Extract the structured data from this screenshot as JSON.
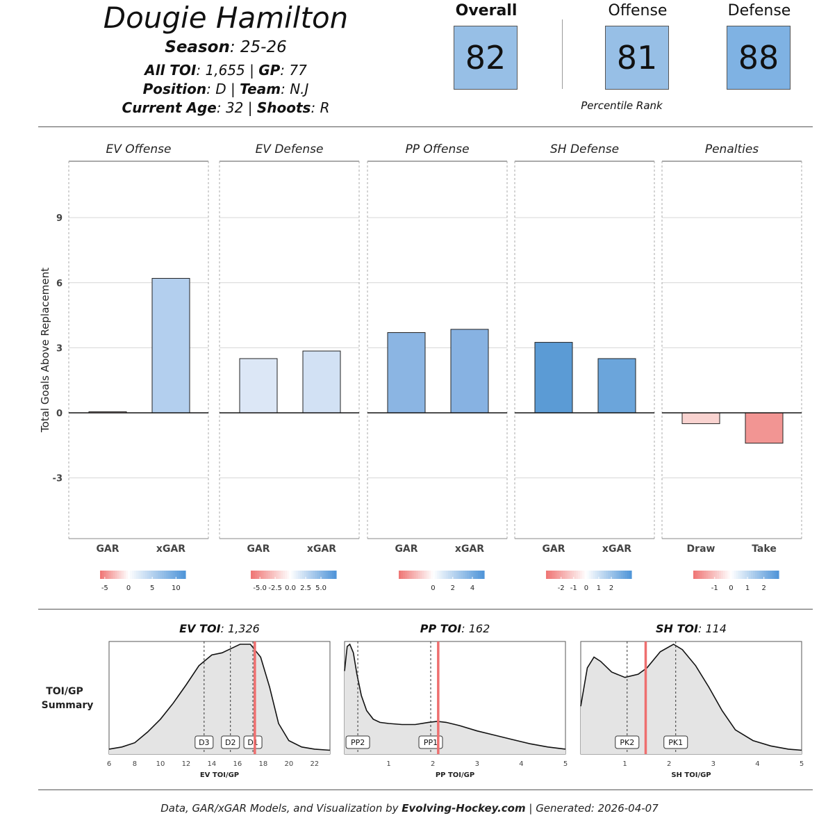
{
  "header": {
    "player_name": "Dougie Hamilton",
    "season_label": "Season",
    "season": "25-26",
    "toi_label": "All TOI",
    "toi": "1,655",
    "gp_label": "GP",
    "gp": "77",
    "position_label": "Position",
    "position": "D",
    "team_label": "Team",
    "team": "N.J",
    "age_label": "Current Age",
    "age": "32",
    "shoots_label": "Shoots",
    "shoots": "R"
  },
  "ratings": {
    "overall_label": "Overall",
    "overall": "82",
    "offense_label": "Offense",
    "offense": "81",
    "defense_label": "Defense",
    "defense": "88",
    "percentile_label": "Percentile Rank",
    "colors": {
      "overall": "#97bfe6",
      "offense": "#97bfe6",
      "defense": "#7fb2e3"
    }
  },
  "footer": {
    "prefix": "Data, GAR/xGAR Models, and Visualization by ",
    "source": "Evolving-Hockey.com",
    "separator": " | ",
    "generated_label": "Generated",
    "generated": "2026-04-07"
  },
  "chart_data": [
    {
      "type": "bar",
      "title": "",
      "ylabel": "Total Goals Above Replacement",
      "ylim": [
        -5.8,
        11.6
      ],
      "yticks": [
        -3,
        0,
        3,
        6,
        9
      ],
      "panels": [
        {
          "title": "EV Offense",
          "categories": [
            "GAR",
            "xGAR"
          ],
          "values": [
            0.05,
            6.2
          ],
          "colors": [
            "#f3d8d6",
            "#b3cfee"
          ],
          "legend": {
            "ticks": [
              "-5",
              "0",
              "5",
              "10"
            ],
            "min": -6,
            "max": 12
          }
        },
        {
          "title": "EV Defense",
          "categories": [
            "GAR",
            "xGAR"
          ],
          "values": [
            2.5,
            2.85
          ],
          "colors": [
            "#dce7f6",
            "#d2e1f4"
          ],
          "legend": {
            "ticks": [
              "-5.0",
              "-2.5",
              "0.0",
              "2.5",
              "5.0"
            ],
            "min": -6.5,
            "max": 7.5
          }
        },
        {
          "title": "PP Offense",
          "categories": [
            "GAR",
            "xGAR"
          ],
          "values": [
            3.7,
            3.85
          ],
          "colors": [
            "#8bb5e3",
            "#87b2e2"
          ],
          "legend": {
            "ticks": [
              "0",
              "2",
              "4"
            ],
            "min": -3.5,
            "max": 5.2
          }
        },
        {
          "title": "SH Defense",
          "categories": [
            "GAR",
            "xGAR"
          ],
          "values": [
            3.25,
            2.5
          ],
          "colors": [
            "#5b9bd5",
            "#6ba5db"
          ],
          "legend": {
            "ticks": [
              "-2",
              "-1",
              "0",
              "1",
              "2"
            ],
            "min": -3.2,
            "max": 3.6
          }
        },
        {
          "title": "Penalties",
          "categories": [
            "Draw",
            "Take"
          ],
          "values": [
            -0.5,
            -1.4
          ],
          "colors": [
            "#f9d3d0",
            "#f29593"
          ],
          "legend": {
            "ticks": [
              "-1",
              "0",
              "1",
              "2"
            ],
            "min": -2.3,
            "max": 2.9
          }
        }
      ]
    },
    {
      "type": "area",
      "title": "TOI/GP Summary",
      "row_label_line1": "TOI/GP",
      "row_label_line2": "Summary",
      "panels": [
        {
          "title_label": "EV TOI",
          "title_value": "1,326",
          "xlabel": "EV TOI/GP",
          "xlim": [
            6,
            23.2
          ],
          "xticks": [
            6,
            8,
            10,
            12,
            14,
            16,
            18,
            20,
            22
          ],
          "density_x": [
            6,
            7,
            8,
            9,
            10,
            11,
            12,
            13,
            14,
            14.8,
            15.5,
            16.2,
            17,
            17.8,
            18.5,
            19.2,
            20,
            21,
            22,
            23.2
          ],
          "density_y": [
            0.02,
            0.04,
            0.08,
            0.18,
            0.3,
            0.45,
            0.62,
            0.8,
            0.9,
            0.92,
            0.96,
            1.0,
            1.0,
            0.88,
            0.6,
            0.26,
            0.1,
            0.04,
            0.02,
            0.01
          ],
          "markers": [
            {
              "label": "D3",
              "x": 13.4
            },
            {
              "label": "D2",
              "x": 15.45
            },
            {
              "label": "D1",
              "x": 17.2
            }
          ],
          "player_value": 17.35
        },
        {
          "title_label": "PP TOI",
          "title_value": "162",
          "xlabel": "PP TOI/GP",
          "xlim": [
            0,
            5
          ],
          "xticks": [
            1,
            2,
            3,
            4,
            5
          ],
          "density_x": [
            0,
            0.06,
            0.12,
            0.2,
            0.28,
            0.38,
            0.5,
            0.65,
            0.8,
            1.0,
            1.3,
            1.6,
            1.9,
            2.1,
            2.3,
            2.6,
            3.0,
            3.4,
            3.8,
            4.2,
            4.6,
            5.0
          ],
          "density_y": [
            0.75,
            0.98,
            1.0,
            0.92,
            0.72,
            0.52,
            0.38,
            0.3,
            0.27,
            0.26,
            0.25,
            0.25,
            0.27,
            0.28,
            0.27,
            0.24,
            0.19,
            0.15,
            0.11,
            0.07,
            0.04,
            0.02
          ],
          "markers": [
            {
              "label": "PP2",
              "x": 0.3
            },
            {
              "label": "PP1",
              "x": 1.95
            }
          ],
          "player_value": 2.12
        },
        {
          "title_label": "SH TOI",
          "title_value": "114",
          "xlabel": "SH TOI/GP",
          "xlim": [
            0,
            5
          ],
          "xticks": [
            1,
            2,
            3,
            4,
            5
          ],
          "density_x": [
            0,
            0.15,
            0.3,
            0.45,
            0.7,
            1.0,
            1.3,
            1.5,
            1.8,
            2.1,
            2.3,
            2.6,
            2.9,
            3.2,
            3.5,
            3.9,
            4.3,
            4.7,
            5.0
          ],
          "density_y": [
            0.42,
            0.78,
            0.88,
            0.84,
            0.74,
            0.69,
            0.72,
            0.78,
            0.93,
            1.0,
            0.95,
            0.8,
            0.6,
            0.38,
            0.2,
            0.1,
            0.05,
            0.02,
            0.01
          ],
          "markers": [
            {
              "label": "PK2",
              "x": 1.05
            },
            {
              "label": "PK1",
              "x": 2.15
            }
          ],
          "player_value": 1.47
        }
      ]
    }
  ]
}
